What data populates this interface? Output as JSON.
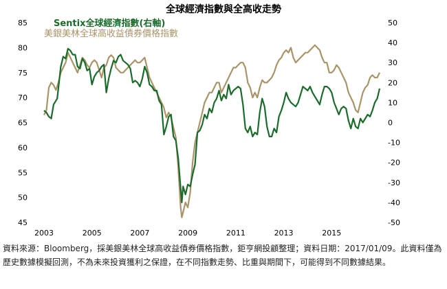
{
  "chart_data": {
    "type": "line",
    "title": "全球經濟指數與全高收走勢",
    "x_ticks": [
      "2003",
      "2005",
      "2007",
      "2009",
      "2011",
      "2013",
      "2015"
    ],
    "left_axis": {
      "ylim": [
        45,
        85
      ],
      "ticks": [
        "85",
        "80",
        "75",
        "70",
        "65",
        "60",
        "55",
        "50",
        "45"
      ]
    },
    "right_axis": {
      "ylim": [
        -50,
        50
      ],
      "ticks": [
        "50",
        "40",
        "30",
        "20",
        "10",
        "0",
        "-10",
        "-20",
        "-30",
        "-40",
        "-50"
      ]
    },
    "grid": false,
    "legend_position": "top-left",
    "series": [
      {
        "name": "Sentix全球經濟指數(右軸)",
        "axis": "right",
        "color": "#1a6b2a",
        "points": [
          [
            2003.0,
            6
          ],
          [
            2003.1,
            5
          ],
          [
            2003.2,
            3
          ],
          [
            2003.3,
            2
          ],
          [
            2003.4,
            9
          ],
          [
            2003.55,
            12
          ],
          [
            2003.7,
            28
          ],
          [
            2003.8,
            33
          ],
          [
            2003.9,
            32
          ],
          [
            2004.0,
            37
          ],
          [
            2004.1,
            36
          ],
          [
            2004.2,
            34
          ],
          [
            2004.3,
            34
          ],
          [
            2004.4,
            28
          ],
          [
            2004.5,
            27
          ],
          [
            2004.6,
            32
          ],
          [
            2004.7,
            30
          ],
          [
            2004.8,
            26
          ],
          [
            2004.9,
            27
          ],
          [
            2005.0,
            19
          ],
          [
            2005.1,
            23
          ],
          [
            2005.2,
            25
          ],
          [
            2005.3,
            26
          ],
          [
            2005.4,
            28
          ],
          [
            2005.5,
            29
          ],
          [
            2005.6,
            15
          ],
          [
            2005.7,
            22
          ],
          [
            2005.8,
            27
          ],
          [
            2005.9,
            31
          ],
          [
            2006.0,
            30
          ],
          [
            2006.1,
            33
          ],
          [
            2006.2,
            34
          ],
          [
            2006.3,
            31
          ],
          [
            2006.4,
            30
          ],
          [
            2006.5,
            29
          ],
          [
            2006.6,
            27
          ],
          [
            2006.7,
            20
          ],
          [
            2006.8,
            21
          ],
          [
            2006.9,
            20
          ],
          [
            2007.0,
            18
          ],
          [
            2007.1,
            22
          ],
          [
            2007.2,
            28
          ],
          [
            2007.3,
            25
          ],
          [
            2007.4,
            19
          ],
          [
            2007.5,
            18
          ],
          [
            2007.6,
            16
          ],
          [
            2007.7,
            16
          ],
          [
            2007.8,
            11
          ],
          [
            2007.9,
            9
          ],
          [
            2008.0,
            -6
          ],
          [
            2008.1,
            -2
          ],
          [
            2008.2,
            3
          ],
          [
            2008.3,
            4
          ],
          [
            2008.4,
            -7
          ],
          [
            2008.5,
            -9
          ],
          [
            2008.6,
            -18
          ],
          [
            2008.7,
            -33
          ],
          [
            2008.75,
            -40
          ],
          [
            2008.8,
            -32
          ],
          [
            2008.9,
            -36
          ],
          [
            2009.0,
            -31
          ],
          [
            2009.1,
            -32
          ],
          [
            2009.2,
            -26
          ],
          [
            2009.3,
            -21
          ],
          [
            2009.4,
            -5
          ],
          [
            2009.5,
            -4
          ],
          [
            2009.6,
            -1
          ],
          [
            2009.7,
            4
          ],
          [
            2009.8,
            2
          ],
          [
            2009.9,
            7
          ],
          [
            2010.0,
            5
          ],
          [
            2010.1,
            10
          ],
          [
            2010.2,
            12
          ],
          [
            2010.3,
            16
          ],
          [
            2010.4,
            11
          ],
          [
            2010.5,
            14
          ],
          [
            2010.6,
            12
          ],
          [
            2010.7,
            19
          ],
          [
            2010.8,
            14
          ],
          [
            2010.9,
            16
          ],
          [
            2011.0,
            17
          ],
          [
            2011.1,
            18
          ],
          [
            2011.2,
            17
          ],
          [
            2011.3,
            9
          ],
          [
            2011.4,
            -3
          ],
          [
            2011.5,
            -5
          ],
          [
            2011.6,
            -2
          ],
          [
            2011.7,
            -7
          ],
          [
            2011.8,
            -5
          ],
          [
            2011.9,
            -6
          ],
          [
            2012.0,
            5
          ],
          [
            2012.1,
            12
          ],
          [
            2012.2,
            8
          ],
          [
            2012.3,
            -2
          ],
          [
            2012.4,
            -7
          ],
          [
            2012.5,
            -7
          ],
          [
            2012.6,
            -3
          ],
          [
            2012.7,
            -5
          ],
          [
            2012.8,
            3
          ],
          [
            2012.9,
            6
          ],
          [
            2013.0,
            10
          ],
          [
            2013.1,
            15
          ],
          [
            2013.2,
            12
          ],
          [
            2013.3,
            10
          ],
          [
            2013.4,
            9
          ],
          [
            2013.5,
            8
          ],
          [
            2013.6,
            10
          ],
          [
            2013.7,
            14
          ],
          [
            2013.8,
            18
          ],
          [
            2013.9,
            17
          ],
          [
            2014.0,
            16
          ],
          [
            2014.1,
            18
          ],
          [
            2014.2,
            15
          ],
          [
            2014.3,
            13
          ],
          [
            2014.4,
            11
          ],
          [
            2014.5,
            9
          ],
          [
            2014.6,
            14
          ],
          [
            2014.7,
            18
          ],
          [
            2014.8,
            18
          ],
          [
            2014.9,
            17
          ],
          [
            2015.0,
            15
          ],
          [
            2015.1,
            10
          ],
          [
            2015.2,
            7
          ],
          [
            2015.3,
            4
          ],
          [
            2015.4,
            7
          ],
          [
            2015.5,
            8
          ],
          [
            2015.6,
            7
          ],
          [
            2015.7,
            1
          ],
          [
            2015.8,
            -3
          ],
          [
            2015.9,
            2
          ],
          [
            2016.0,
            -2
          ],
          [
            2016.1,
            -3
          ],
          [
            2016.2,
            2
          ],
          [
            2016.3,
            0
          ],
          [
            2016.4,
            2
          ],
          [
            2016.5,
            4
          ],
          [
            2016.6,
            3
          ],
          [
            2016.7,
            6
          ],
          [
            2016.8,
            10
          ],
          [
            2016.9,
            12
          ],
          [
            2017.0,
            17
          ]
        ]
      },
      {
        "name": "美銀美林全球高收益債券價格指數",
        "axis": "left",
        "color": "#a89468",
        "points": [
          [
            2003.0,
            66.5
          ],
          [
            2003.1,
            67.5
          ],
          [
            2003.2,
            72
          ],
          [
            2003.3,
            73
          ],
          [
            2003.4,
            72.5
          ],
          [
            2003.5,
            71.5
          ],
          [
            2003.6,
            73
          ],
          [
            2003.7,
            75
          ],
          [
            2003.8,
            76
          ],
          [
            2003.9,
            77
          ],
          [
            2004.0,
            79
          ],
          [
            2004.1,
            78
          ],
          [
            2004.2,
            77
          ],
          [
            2004.3,
            76
          ],
          [
            2004.4,
            75
          ],
          [
            2004.5,
            76.5
          ],
          [
            2004.6,
            78
          ],
          [
            2004.7,
            77.5
          ],
          [
            2004.8,
            76.5
          ],
          [
            2004.9,
            76
          ],
          [
            2005.0,
            77
          ],
          [
            2005.1,
            77.5
          ],
          [
            2005.2,
            77
          ],
          [
            2005.3,
            75.5
          ],
          [
            2005.4,
            74
          ],
          [
            2005.5,
            76
          ],
          [
            2005.6,
            76.5
          ],
          [
            2005.7,
            78
          ],
          [
            2005.8,
            78.5
          ],
          [
            2005.9,
            78
          ],
          [
            2006.0,
            76
          ],
          [
            2006.1,
            75.5
          ],
          [
            2006.2,
            75
          ],
          [
            2006.3,
            75
          ],
          [
            2006.4,
            75.5
          ],
          [
            2006.5,
            76
          ],
          [
            2006.6,
            76.5
          ],
          [
            2006.7,
            77
          ],
          [
            2006.8,
            77.5
          ],
          [
            2006.9,
            77
          ],
          [
            2007.0,
            77
          ],
          [
            2007.1,
            77.5
          ],
          [
            2007.2,
            78
          ],
          [
            2007.3,
            76
          ],
          [
            2007.4,
            74
          ],
          [
            2007.5,
            73
          ],
          [
            2007.6,
            72
          ],
          [
            2007.7,
            71
          ],
          [
            2007.8,
            70
          ],
          [
            2007.9,
            69
          ],
          [
            2008.0,
            68
          ],
          [
            2008.1,
            66
          ],
          [
            2008.2,
            67
          ],
          [
            2008.3,
            66
          ],
          [
            2008.4,
            64
          ],
          [
            2008.5,
            62
          ],
          [
            2008.6,
            56
          ],
          [
            2008.7,
            48
          ],
          [
            2008.75,
            46
          ],
          [
            2008.8,
            47
          ],
          [
            2008.9,
            49
          ],
          [
            2009.0,
            48
          ],
          [
            2009.1,
            51
          ],
          [
            2009.2,
            57
          ],
          [
            2009.3,
            61
          ],
          [
            2009.4,
            63
          ],
          [
            2009.5,
            65
          ],
          [
            2009.6,
            67
          ],
          [
            2009.7,
            69
          ],
          [
            2009.8,
            70
          ],
          [
            2009.9,
            71
          ],
          [
            2010.0,
            71
          ],
          [
            2010.1,
            72
          ],
          [
            2010.2,
            73
          ],
          [
            2010.3,
            73
          ],
          [
            2010.4,
            71
          ],
          [
            2010.5,
            72
          ],
          [
            2010.6,
            73
          ],
          [
            2010.7,
            74
          ],
          [
            2010.8,
            75
          ],
          [
            2010.9,
            76
          ],
          [
            2011.0,
            76
          ],
          [
            2011.1,
            76.5
          ],
          [
            2011.2,
            77
          ],
          [
            2011.3,
            77
          ],
          [
            2011.4,
            76
          ],
          [
            2011.5,
            73
          ],
          [
            2011.6,
            72
          ],
          [
            2011.7,
            70
          ],
          [
            2011.8,
            71
          ],
          [
            2011.9,
            70
          ],
          [
            2012.0,
            72
          ],
          [
            2012.1,
            73.5
          ],
          [
            2012.2,
            73
          ],
          [
            2012.3,
            73
          ],
          [
            2012.4,
            73.5
          ],
          [
            2012.5,
            74
          ],
          [
            2012.6,
            75
          ],
          [
            2012.7,
            76.5
          ],
          [
            2012.8,
            77.5
          ],
          [
            2012.9,
            78
          ],
          [
            2013.0,
            79
          ],
          [
            2013.1,
            79.5
          ],
          [
            2013.2,
            79
          ],
          [
            2013.3,
            80
          ],
          [
            2013.4,
            78
          ],
          [
            2013.5,
            77
          ],
          [
            2013.6,
            77.5
          ],
          [
            2013.7,
            78
          ],
          [
            2013.8,
            78.5
          ],
          [
            2013.9,
            79
          ],
          [
            2014.0,
            79
          ],
          [
            2014.1,
            79.5
          ],
          [
            2014.2,
            80
          ],
          [
            2014.3,
            80.5
          ],
          [
            2014.4,
            80
          ],
          [
            2014.5,
            79.5
          ],
          [
            2014.6,
            78
          ],
          [
            2014.7,
            77
          ],
          [
            2014.8,
            77
          ],
          [
            2014.9,
            75
          ],
          [
            2015.0,
            75
          ],
          [
            2015.1,
            75.5
          ],
          [
            2015.2,
            76.5
          ],
          [
            2015.3,
            76
          ],
          [
            2015.4,
            75
          ],
          [
            2015.5,
            74
          ],
          [
            2015.6,
            73
          ],
          [
            2015.7,
            71
          ],
          [
            2015.8,
            70
          ],
          [
            2015.9,
            69
          ],
          [
            2016.0,
            67.5
          ],
          [
            2016.1,
            67
          ],
          [
            2016.2,
            69
          ],
          [
            2016.3,
            71
          ],
          [
            2016.4,
            72
          ],
          [
            2016.5,
            72.5
          ],
          [
            2016.6,
            74
          ],
          [
            2016.7,
            74.5
          ],
          [
            2016.8,
            74
          ],
          [
            2016.9,
            74
          ],
          [
            2017.0,
            75
          ]
        ]
      }
    ]
  },
  "footnote": "資料來源：Bloomberg，採美銀美林全球高收益債券價格指數，鉅亨網投顧整理；資料日期：2017/01/09。此資料僅為歷史數據模擬回測，不為未來投資獲利之保證，在不同指數走勢、比重與期間下，可能得到不同數據結果。"
}
